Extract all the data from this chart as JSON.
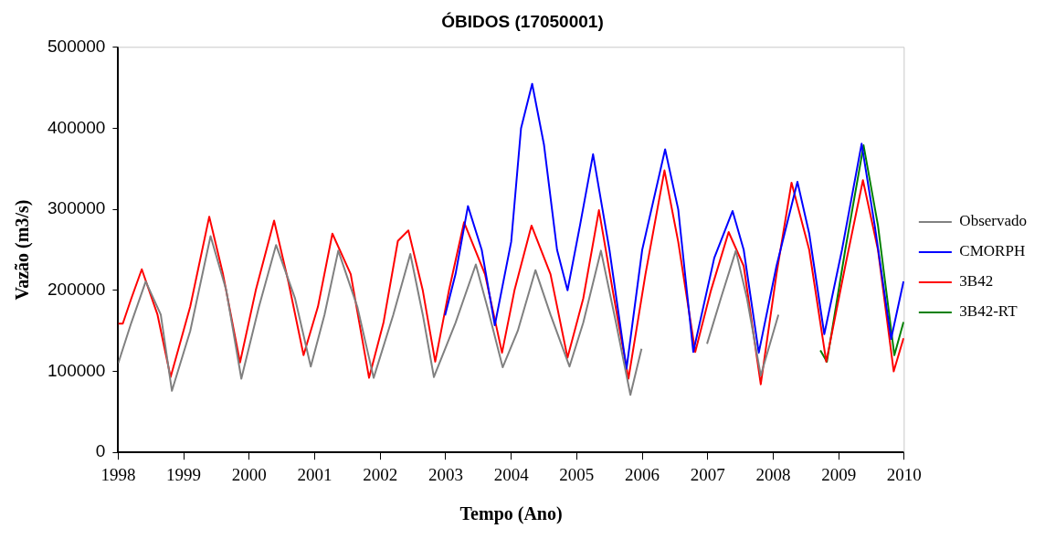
{
  "chart_data": {
    "type": "line",
    "title": "ÓBIDOS (17050001)",
    "xlabel": "Tempo (Ano)",
    "ylabel": "Vazão (m3/s)",
    "xlim": [
      1998,
      2010
    ],
    "xticks": [
      1998,
      1999,
      2000,
      2001,
      2002,
      2003,
      2004,
      2005,
      2006,
      2007,
      2008,
      2009,
      2010
    ],
    "ylim": [
      0,
      500000
    ],
    "yticks": [
      0,
      100000,
      200000,
      300000,
      400000,
      500000
    ],
    "grid": false,
    "legend": "right",
    "marker": "none",
    "line_style": "solid",
    "series": [
      {
        "name": "Observado",
        "color": "#808080",
        "x": [
          1998.0,
          1998.2,
          1998.42,
          1998.65,
          1998.82,
          1999.1,
          1999.41,
          1999.65,
          1999.88,
          2000.15,
          2000.41,
          2000.7,
          2000.94,
          2001.15,
          2001.36,
          2001.65,
          2001.9,
          2002.2,
          2002.46,
          2002.65,
          2002.82,
          2003.15,
          2003.46,
          2003.65,
          2003.87,
          2004.1,
          2004.37,
          2004.6,
          2004.89,
          2005.1,
          2005.37,
          2005.6,
          2005.82,
          2005.99,
          2006.5,
          2006.99,
          2007.2,
          2007.43,
          2007.6,
          2007.81,
          2008.08
        ],
        "values": [
          110000,
          160000,
          211000,
          170000,
          76000,
          150000,
          267000,
          200000,
          91000,
          180000,
          256000,
          190000,
          106000,
          170000,
          249000,
          180000,
          92000,
          170000,
          245000,
          170000,
          93000,
          160000,
          232000,
          175000,
          105000,
          150000,
          225000,
          170000,
          106000,
          160000,
          249000,
          160000,
          71000,
          128000,
          null,
          134000,
          190000,
          249000,
          190000,
          95000,
          170000
        ]
      },
      {
        "name": "CMORPH",
        "color": "#0000ff",
        "x": [
          2002.99,
          2003.15,
          2003.34,
          2003.55,
          2003.75,
          2004.0,
          2004.15,
          2004.32,
          2004.5,
          2004.7,
          2004.86,
          2005.05,
          2005.25,
          2005.5,
          2005.76,
          2006.0,
          2006.35,
          2006.55,
          2006.78,
          2007.1,
          2007.38,
          2007.55,
          2007.78,
          2008.05,
          2008.37,
          2008.55,
          2008.78,
          2009.05,
          2009.35,
          2009.55,
          2009.8,
          2009.99
        ],
        "values": [
          169000,
          220000,
          304000,
          250000,
          157000,
          260000,
          400000,
          455000,
          380000,
          250000,
          200000,
          280000,
          368000,
          250000,
          103000,
          250000,
          374000,
          300000,
          124000,
          240000,
          298000,
          250000,
          123000,
          230000,
          334000,
          270000,
          146000,
          250000,
          381000,
          280000,
          140000,
          211000
        ]
      },
      {
        "name": "3B42",
        "color": "#ff0000",
        "x": [
          1998.0,
          1998.07,
          1998.2,
          1998.36,
          1998.6,
          1998.8,
          1999.1,
          1999.39,
          1999.6,
          1999.86,
          2000.1,
          2000.38,
          2000.6,
          2000.83,
          2001.05,
          2001.27,
          2001.55,
          2001.83,
          2002.05,
          2002.27,
          2002.43,
          2002.65,
          2002.84,
          2003.05,
          2003.28,
          2003.6,
          2003.86,
          2004.05,
          2004.31,
          2004.6,
          2004.86,
          2005.1,
          2005.34,
          2005.55,
          2005.79,
          2006.05,
          2006.34,
          2006.55,
          2006.81,
          2007.05,
          2007.32,
          2007.55,
          2007.81,
          2008.05,
          2008.28,
          2008.55,
          2008.81,
          2009.1,
          2009.37,
          2009.6,
          2009.84,
          2009.99
        ],
        "values": [
          159000,
          159000,
          190000,
          226000,
          170000,
          93000,
          180000,
          291000,
          220000,
          111000,
          200000,
          286000,
          210000,
          120000,
          180000,
          270000,
          220000,
          92000,
          160000,
          261000,
          274000,
          200000,
          112000,
          200000,
          284000,
          220000,
          123000,
          200000,
          280000,
          220000,
          117000,
          190000,
          299000,
          200000,
          91000,
          220000,
          348000,
          260000,
          124000,
          200000,
          272000,
          230000,
          84000,
          220000,
          333000,
          250000,
          112000,
          230000,
          336000,
          250000,
          100000,
          141000
        ]
      },
      {
        "name": "3B42-RT",
        "color": "#008000",
        "x": [
          2008.72,
          2008.82,
          2009.1,
          2009.38,
          2009.6,
          2009.85,
          2009.99
        ],
        "values": [
          126000,
          112000,
          250000,
          379000,
          280000,
          120000,
          161000
        ]
      }
    ]
  }
}
